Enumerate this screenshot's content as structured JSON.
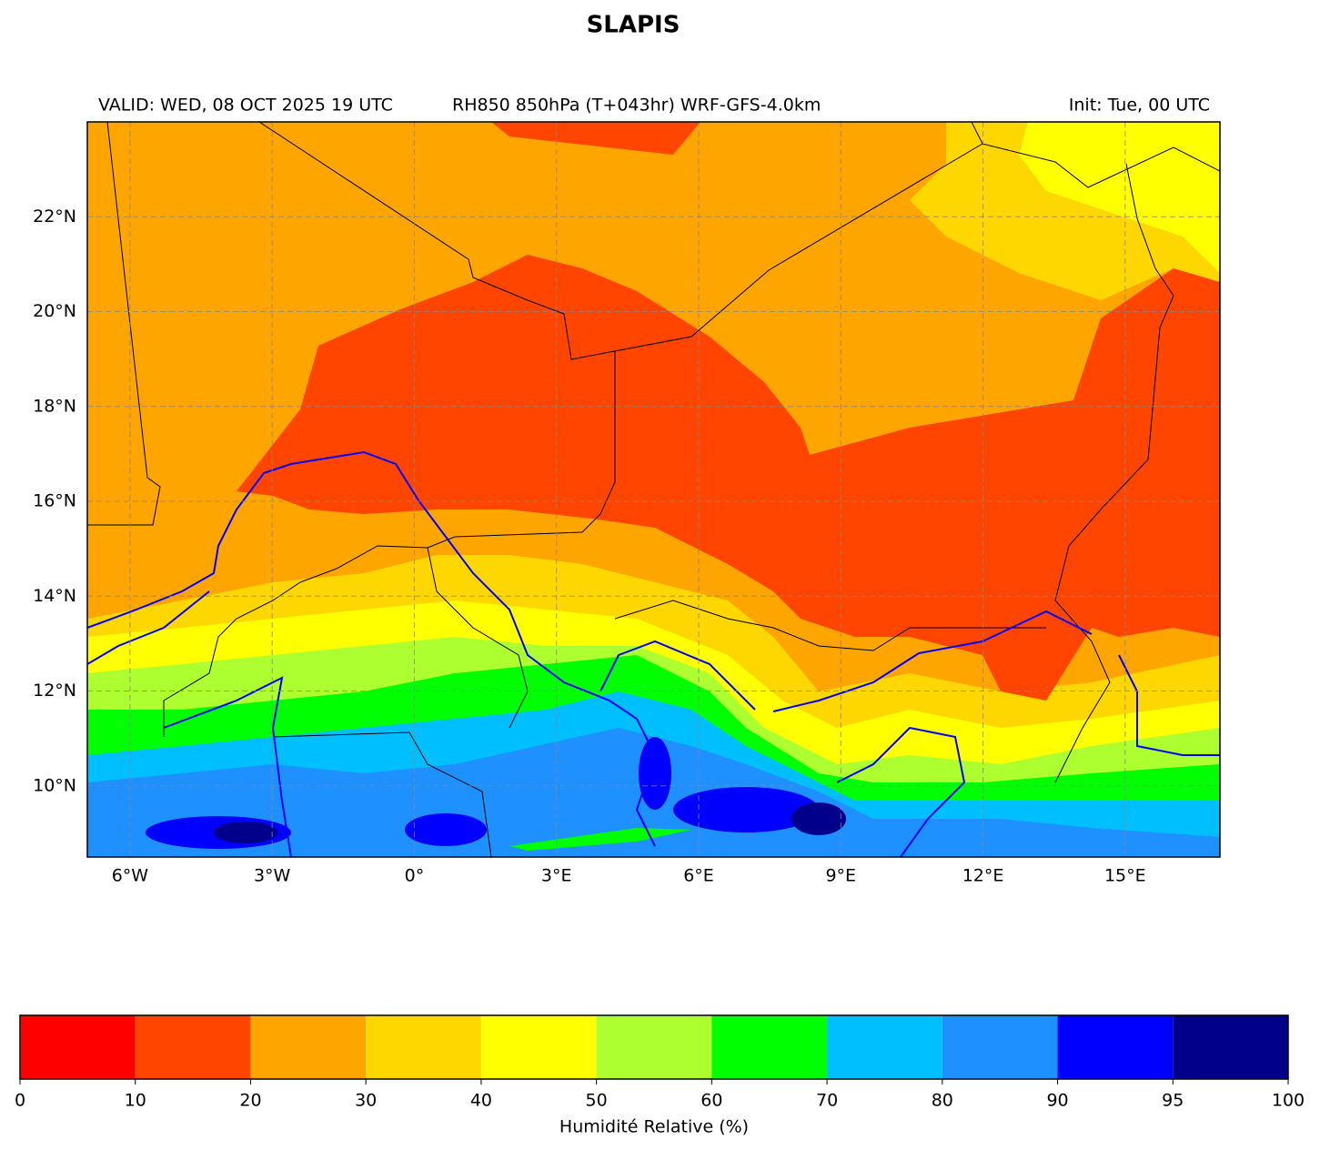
{
  "map": {
    "title": "SLAPIS",
    "valid": "VALID: WED, 08 OCT 2025 19 UTC",
    "product": "RH850 850hPa (T+043hr) WRF-GFS-4.0km",
    "init": "Init: Tue, 00 UTC",
    "xlim": [
      -6.9,
      17
    ],
    "ylim": [
      8.5,
      24
    ],
    "xticks": [
      {
        "value": -6,
        "label": "6°W"
      },
      {
        "value": -3,
        "label": "3°W"
      },
      {
        "value": 0,
        "label": "0°"
      },
      {
        "value": 3,
        "label": "3°E"
      },
      {
        "value": 6,
        "label": "6°E"
      },
      {
        "value": 9,
        "label": "9°E"
      },
      {
        "value": 12,
        "label": "12°E"
      },
      {
        "value": 15,
        "label": "15°E"
      }
    ],
    "yticks": [
      {
        "value": 10,
        "label": "10°N"
      },
      {
        "value": 12,
        "label": "12°N"
      },
      {
        "value": 14,
        "label": "14°N"
      },
      {
        "value": 16,
        "label": "16°N"
      },
      {
        "value": 18,
        "label": "18°N"
      },
      {
        "value": 20,
        "label": "20°N"
      },
      {
        "value": 22,
        "label": "22°N"
      }
    ],
    "grid": true
  },
  "colorbar": {
    "levels": [
      0,
      10,
      20,
      30,
      40,
      50,
      60,
      70,
      80,
      90,
      95,
      100
    ],
    "colors": [
      "#ff0000",
      "#ff4500",
      "#ffa500",
      "#ffd700",
      "#ffff00",
      "#adff2f",
      "#00ff00",
      "#00bfff",
      "#1e90ff",
      "#0000ff",
      "#00008b"
    ],
    "label": "Humidité Relative (%)"
  }
}
